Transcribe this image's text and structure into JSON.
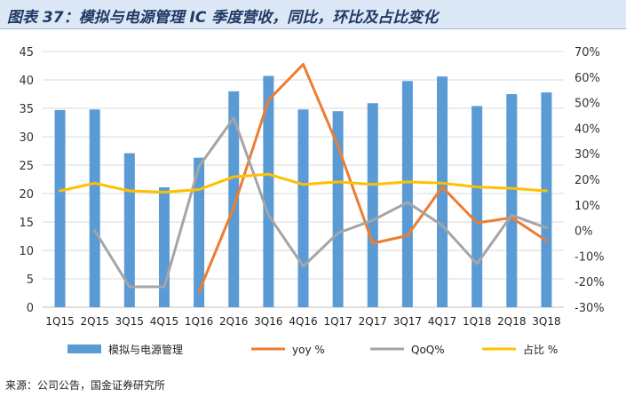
{
  "title": "图表 37：模拟与电源管理 IC 季度营收，同比，环比及占比变化",
  "source": "来源：公司公告，国金证券研究所",
  "chart_data": {
    "type": "bar",
    "categories": [
      "1Q15",
      "2Q15",
      "3Q15",
      "4Q15",
      "1Q16",
      "2Q16",
      "3Q16",
      "4Q16",
      "1Q17",
      "2Q17",
      "3Q17",
      "4Q17",
      "1Q18",
      "2Q18",
      "3Q18"
    ],
    "left_axis": {
      "ylim": [
        0,
        45
      ],
      "ticks": [
        0,
        5,
        10,
        15,
        20,
        25,
        30,
        35,
        40,
        45
      ]
    },
    "right_axis": {
      "ylim": [
        -30,
        70
      ],
      "ticks": [
        "-30%",
        "-20%",
        "-10%",
        "0%",
        "10%",
        "20%",
        "30%",
        "40%",
        "50%",
        "60%",
        "70%"
      ],
      "tick_values": [
        -30,
        -20,
        -10,
        0,
        10,
        20,
        30,
        40,
        50,
        60,
        70
      ]
    },
    "series": [
      {
        "name": "模拟与电源管理",
        "type": "bar",
        "axis": "left",
        "color": "#5b9bd5",
        "values": [
          34.7,
          34.8,
          27.1,
          21.1,
          26.3,
          38.0,
          40.7,
          34.8,
          34.5,
          35.9,
          39.8,
          40.6,
          35.4,
          37.5,
          37.8
        ]
      },
      {
        "name": "yoy %",
        "type": "line",
        "axis": "right",
        "color": "#ed7d31",
        "values": [
          null,
          null,
          null,
          null,
          -24,
          9,
          51,
          65,
          33,
          -5,
          -2,
          17,
          3,
          5,
          -4
        ]
      },
      {
        "name": "QoQ%",
        "type": "line",
        "axis": "right",
        "color": "#a5a5a5",
        "values": [
          null,
          0,
          -22,
          -22,
          25,
          44,
          6,
          -14,
          -1,
          4,
          11,
          2,
          -13,
          6,
          1
        ]
      },
      {
        "name": "占比 %",
        "type": "line",
        "axis": "right",
        "color": "#ffc000",
        "values": [
          15.5,
          18.5,
          15.5,
          15,
          16,
          21,
          22,
          18,
          19,
          18,
          19,
          18.5,
          17,
          16.5,
          15.5
        ]
      }
    ]
  }
}
